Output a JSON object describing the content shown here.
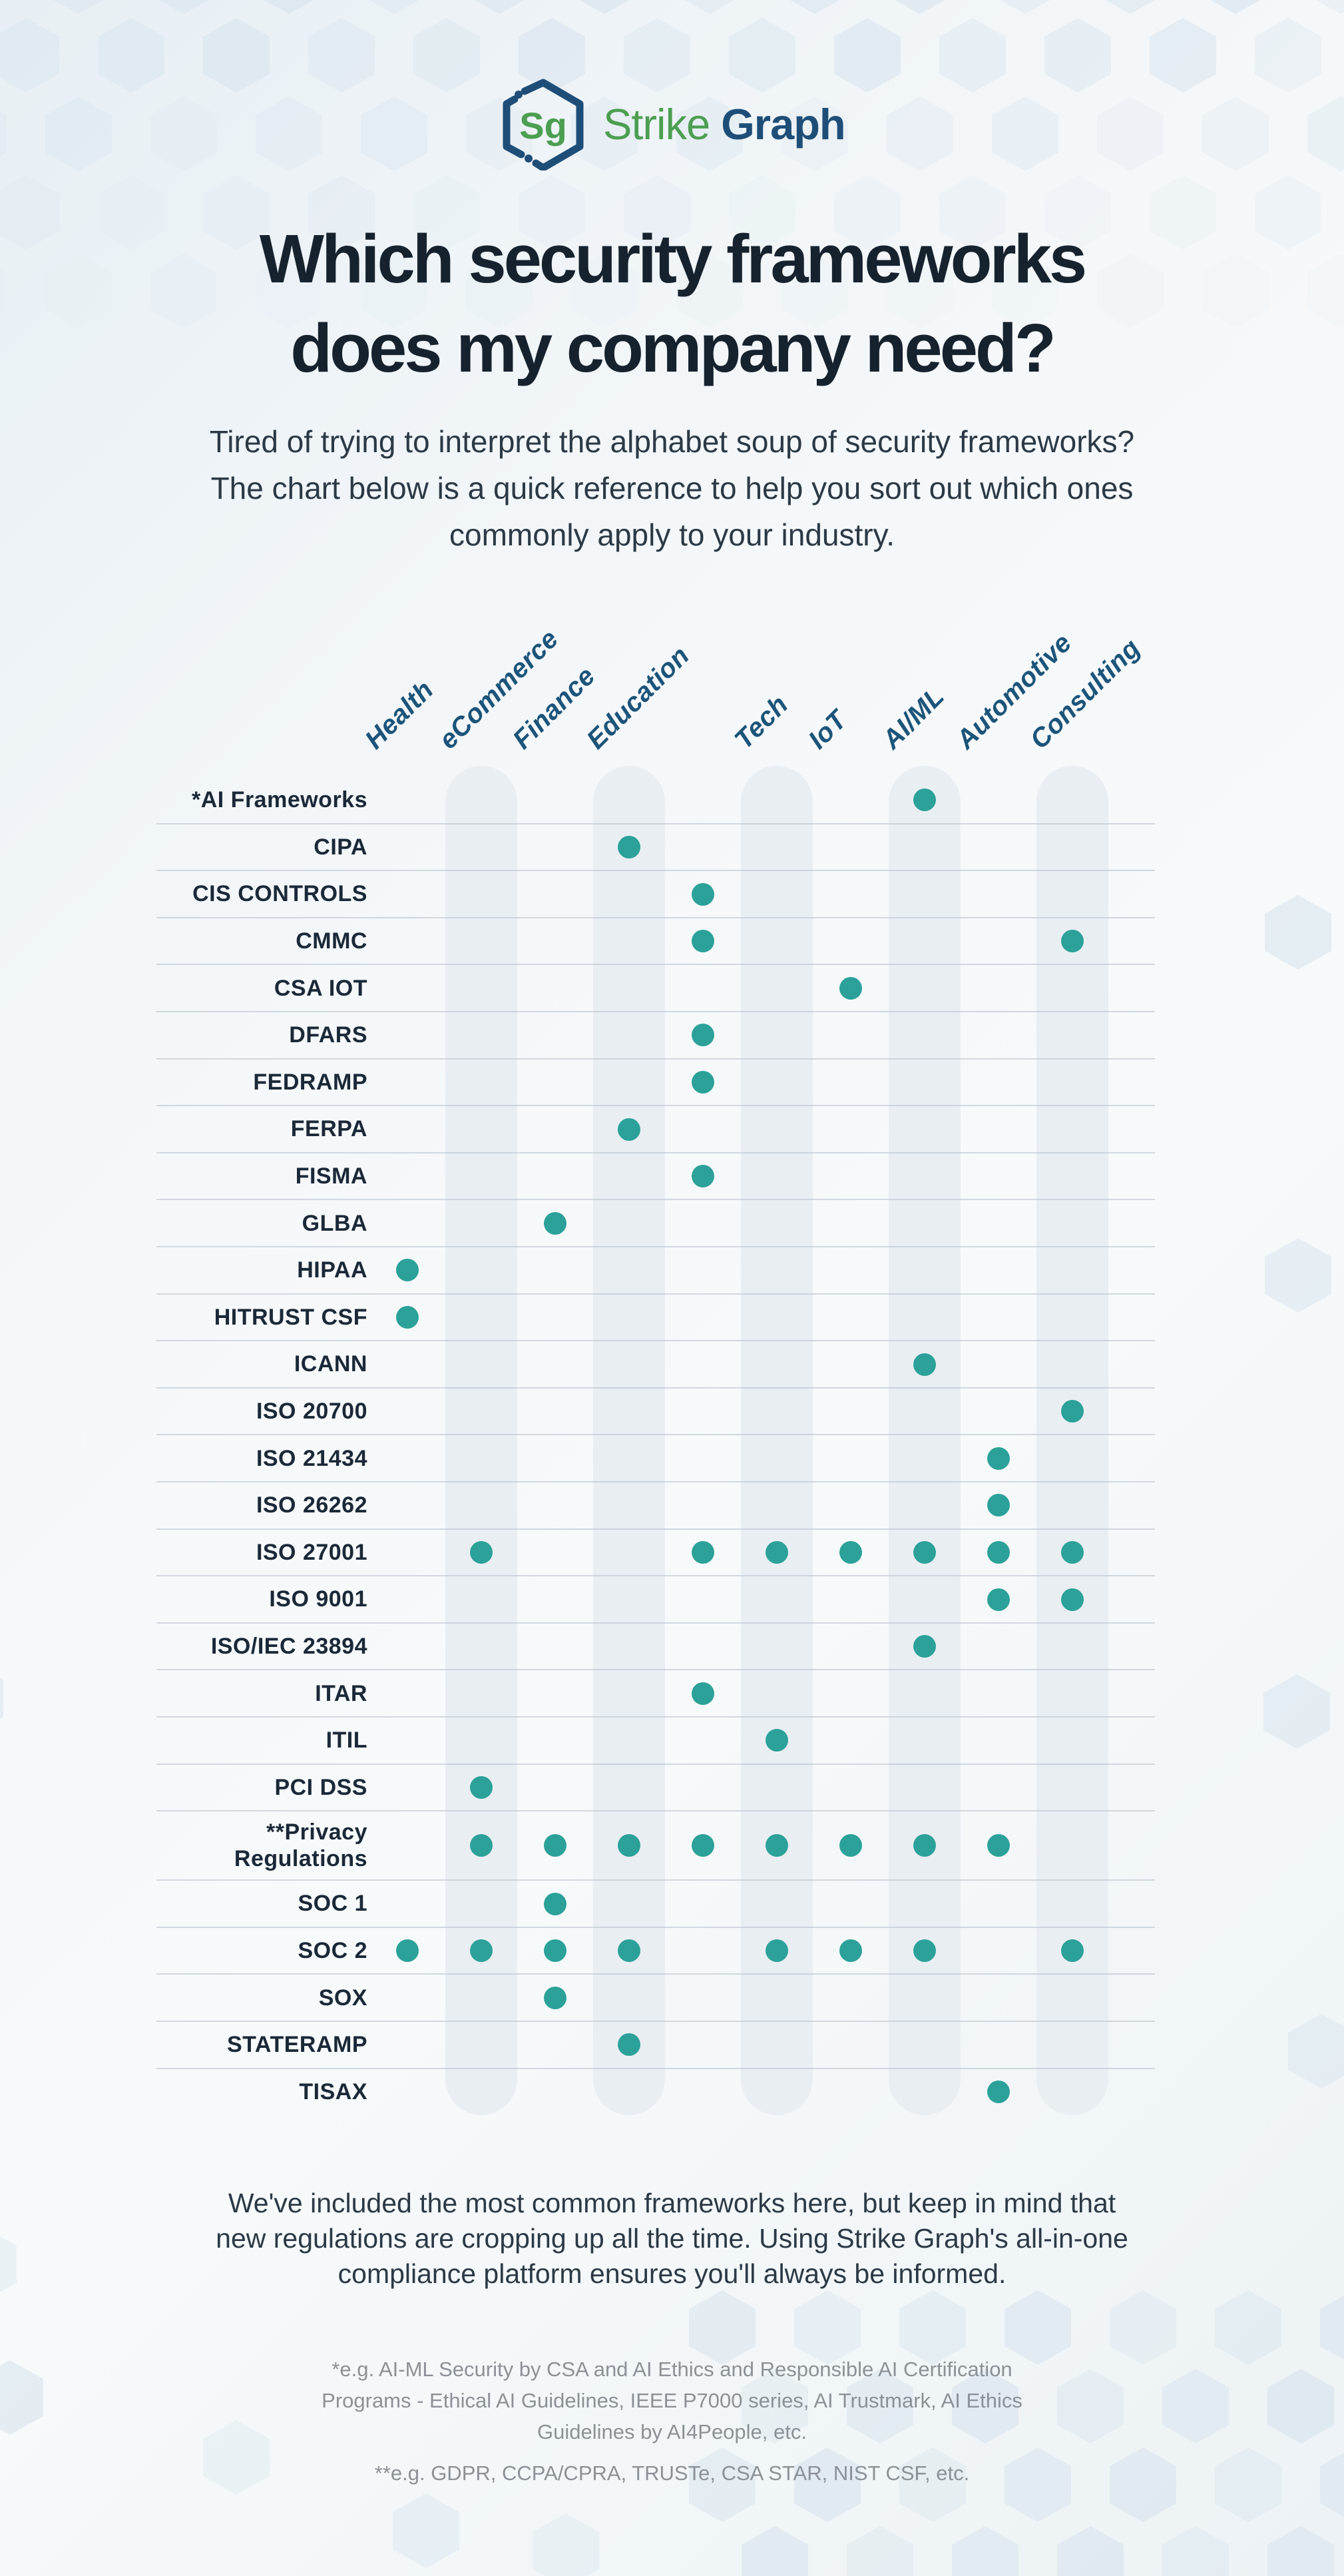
{
  "logo": {
    "monogram": "Sg",
    "brand_first": "Strike",
    "brand_second": "Graph"
  },
  "title": {
    "line1": "Which security frameworks",
    "line2": "does my company need?"
  },
  "intro": [
    "Tired of trying to interpret the alphabet soup of security frameworks?",
    "The chart below is a quick reference to help you sort out which ones",
    "commonly apply to your industry."
  ],
  "chart_data": {
    "type": "table",
    "title": "Which security frameworks does my company need?",
    "columns": [
      "Health",
      "eCommerce",
      "Finance",
      "Education",
      "",
      "Tech",
      "IoT",
      "AI/ML",
      "Automotive",
      "Consulting"
    ],
    "banded_column_indices": [
      1,
      3,
      5,
      7,
      9
    ],
    "mark_legend": "teal dot = framework commonly applies to industry",
    "rows": [
      {
        "label": "*AI Frameworks",
        "marks": [
          0,
          0,
          0,
          0,
          0,
          0,
          0,
          1,
          0,
          0
        ]
      },
      {
        "label": "CIPA",
        "marks": [
          0,
          0,
          0,
          1,
          0,
          0,
          0,
          0,
          0,
          0
        ]
      },
      {
        "label": "CIS CONTROLS",
        "marks": [
          0,
          0,
          0,
          0,
          1,
          0,
          0,
          0,
          0,
          0
        ]
      },
      {
        "label": "CMMC",
        "marks": [
          0,
          0,
          0,
          0,
          1,
          0,
          0,
          0,
          0,
          1
        ]
      },
      {
        "label": "CSA IOT",
        "marks": [
          0,
          0,
          0,
          0,
          0,
          0,
          1,
          0,
          0,
          0
        ]
      },
      {
        "label": "DFARS",
        "marks": [
          0,
          0,
          0,
          0,
          1,
          0,
          0,
          0,
          0,
          0
        ]
      },
      {
        "label": "FEDRAMP",
        "marks": [
          0,
          0,
          0,
          0,
          1,
          0,
          0,
          0,
          0,
          0
        ]
      },
      {
        "label": "FERPA",
        "marks": [
          0,
          0,
          0,
          1,
          0,
          0,
          0,
          0,
          0,
          0
        ]
      },
      {
        "label": "FISMA",
        "marks": [
          0,
          0,
          0,
          0,
          1,
          0,
          0,
          0,
          0,
          0
        ]
      },
      {
        "label": "GLBA",
        "marks": [
          0,
          0,
          1,
          0,
          0,
          0,
          0,
          0,
          0,
          0
        ]
      },
      {
        "label": "HIPAA",
        "marks": [
          1,
          0,
          0,
          0,
          0,
          0,
          0,
          0,
          0,
          0
        ]
      },
      {
        "label": "HITRUST CSF",
        "marks": [
          1,
          0,
          0,
          0,
          0,
          0,
          0,
          0,
          0,
          0
        ]
      },
      {
        "label": "ICANN",
        "marks": [
          0,
          0,
          0,
          0,
          0,
          0,
          0,
          1,
          0,
          0
        ]
      },
      {
        "label": "ISO 20700",
        "marks": [
          0,
          0,
          0,
          0,
          0,
          0,
          0,
          0,
          0,
          1
        ]
      },
      {
        "label": "ISO 21434",
        "marks": [
          0,
          0,
          0,
          0,
          0,
          0,
          0,
          0,
          1,
          0
        ]
      },
      {
        "label": "ISO 26262",
        "marks": [
          0,
          0,
          0,
          0,
          0,
          0,
          0,
          0,
          1,
          0
        ]
      },
      {
        "label": "ISO 27001",
        "marks": [
          0,
          1,
          0,
          0,
          1,
          1,
          1,
          1,
          1,
          1
        ]
      },
      {
        "label": "ISO 9001",
        "marks": [
          0,
          0,
          0,
          0,
          0,
          0,
          0,
          0,
          1,
          1
        ]
      },
      {
        "label": "ISO/IEC 23894",
        "marks": [
          0,
          0,
          0,
          0,
          0,
          0,
          0,
          1,
          0,
          0
        ]
      },
      {
        "label": "ITAR",
        "marks": [
          0,
          0,
          0,
          0,
          1,
          0,
          0,
          0,
          0,
          0
        ]
      },
      {
        "label": "ITIL",
        "marks": [
          0,
          0,
          0,
          0,
          0,
          1,
          0,
          0,
          0,
          0
        ]
      },
      {
        "label": "PCI DSS",
        "marks": [
          0,
          1,
          0,
          0,
          0,
          0,
          0,
          0,
          0,
          0
        ]
      },
      {
        "label": "**Privacy\nRegulations",
        "marks": [
          0,
          1,
          1,
          1,
          1,
          1,
          1,
          1,
          1,
          0
        ]
      },
      {
        "label": "SOC 1",
        "marks": [
          0,
          0,
          1,
          0,
          0,
          0,
          0,
          0,
          0,
          0
        ]
      },
      {
        "label": "SOC 2",
        "marks": [
          1,
          1,
          1,
          1,
          0,
          1,
          1,
          1,
          0,
          1
        ]
      },
      {
        "label": "SOX",
        "marks": [
          0,
          0,
          1,
          0,
          0,
          0,
          0,
          0,
          0,
          0
        ]
      },
      {
        "label": "STATERAMP",
        "marks": [
          0,
          0,
          0,
          1,
          0,
          0,
          0,
          0,
          0,
          0
        ]
      },
      {
        "label": "TISAX",
        "marks": [
          0,
          0,
          0,
          0,
          0,
          0,
          0,
          0,
          1,
          0
        ]
      }
    ]
  },
  "outro": [
    "We've included the most common frameworks here, but keep in mind that",
    "new regulations are cropping up all the time. Using Strike Graph's all-in-one",
    "compliance platform ensures you'll always be informed."
  ],
  "footnotes": {
    "ai_lines": [
      "*e.g. AI-ML Security by CSA and AI Ethics and Responsible AI Certification",
      "Programs - Ethical AI Guidelines, IEEE P7000 series, AI Trustmark, AI Ethics",
      "Guidelines by AI4People, etc."
    ],
    "privacy_line": "**e.g. GDPR, CCPA/CPRA, TRUSTe, CSA STAR, NIST CSF, etc."
  },
  "colors": {
    "dot_teal": "#2BA199",
    "header_blue": "#1C547A",
    "row_label_navy": "#1B2837",
    "title_navy": "#16222E",
    "brand_green": "#4C9E51",
    "brand_navy": "#1E4E78",
    "band_gray": "#E9EEF3",
    "footnote_gray": "#8B9196"
  }
}
